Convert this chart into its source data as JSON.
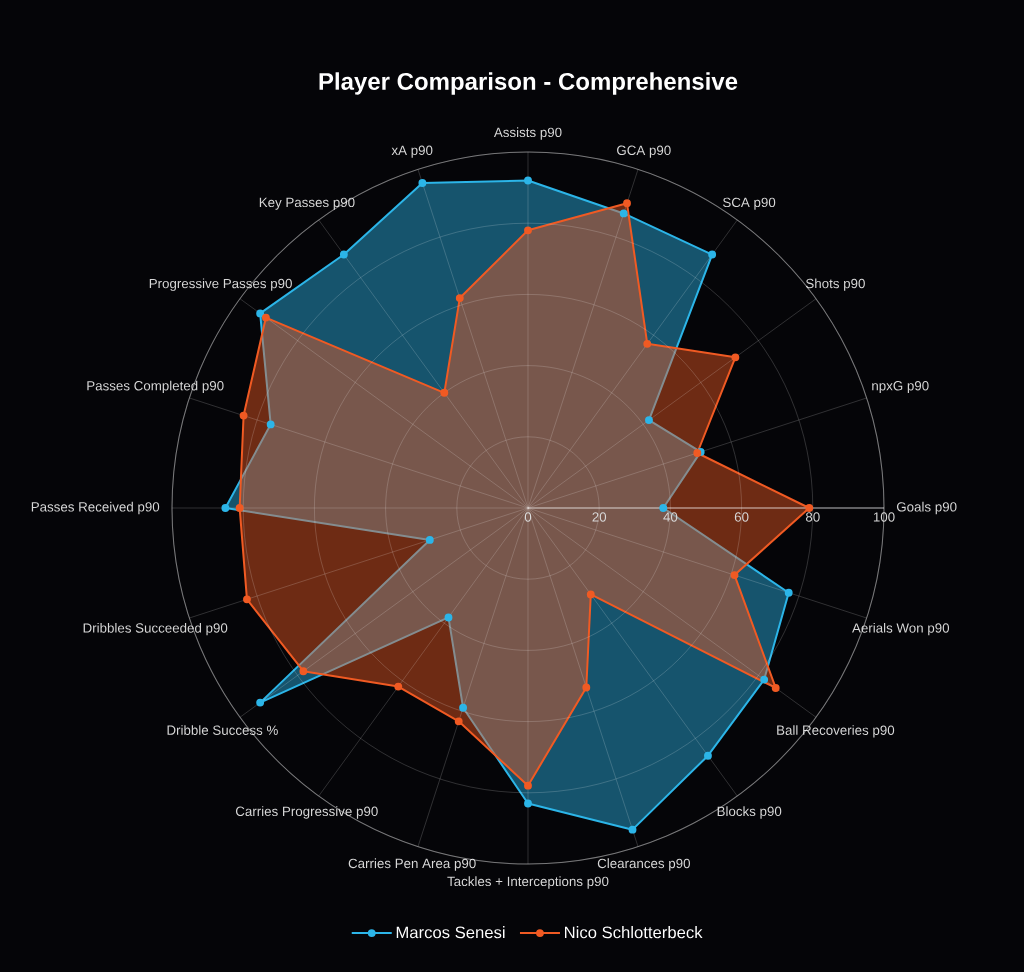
{
  "chart_data": {
    "type": "radar",
    "title": "Player Comparison - Comprehensive",
    "categories": [
      "Assists p90",
      "GCA p90",
      "SCA p90",
      "Shots p90",
      "npxG p90",
      "Goals p90",
      "Aerials Won p90",
      "Ball Recoveries p90",
      "Blocks p90",
      "Clearances p90",
      "Tackles + Interceptions p90",
      "Carries Pen Area p90",
      "Carries Progressive p90",
      "Dribble Success %",
      "Dribbles Succeeded p90",
      "Passes Received p90",
      "Passes Completed p90",
      "Progressive Passes p90",
      "Key Passes p90",
      "xA p90"
    ],
    "series": [
      {
        "name": "Marcos Senesi",
        "color": "#2cb5e8",
        "values": [
          92,
          87,
          88,
          42,
          51,
          38,
          77,
          82,
          86,
          95,
          83,
          59,
          38,
          93,
          29,
          85,
          76,
          93,
          88,
          96
        ]
      },
      {
        "name": "Nico Schlotterbeck",
        "color": "#f05a23",
        "values": [
          78,
          90,
          57,
          72,
          50,
          79,
          61,
          86,
          30,
          53,
          78,
          63,
          62,
          78,
          83,
          81,
          84,
          91,
          40,
          62
        ]
      }
    ],
    "ylim": [
      0,
      100
    ],
    "yticks": [
      0,
      20,
      40,
      60,
      80,
      100
    ],
    "grid": true,
    "legend": "bottom",
    "marker": "circle",
    "line_style": "solid"
  }
}
